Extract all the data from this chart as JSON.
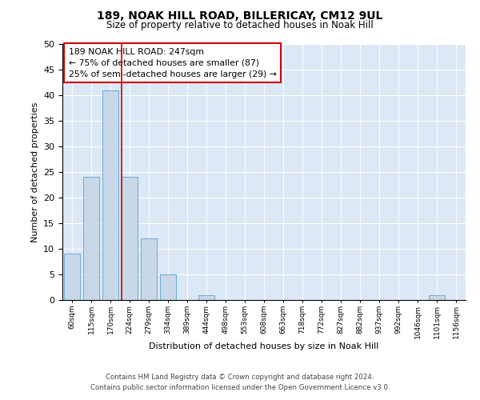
{
  "title": "189, NOAK HILL ROAD, BILLERICAY, CM12 9UL",
  "subtitle": "Size of property relative to detached houses in Noak Hill",
  "xlabel": "Distribution of detached houses by size in Noak Hill",
  "ylabel": "Number of detached properties",
  "bar_color": "#c8d8e8",
  "bar_edge_color": "#6aaad4",
  "background_color": "#dce8f5",
  "categories": [
    "60sqm",
    "115sqm",
    "170sqm",
    "224sqm",
    "279sqm",
    "334sqm",
    "389sqm",
    "444sqm",
    "498sqm",
    "553sqm",
    "608sqm",
    "663sqm",
    "718sqm",
    "772sqm",
    "827sqm",
    "882sqm",
    "937sqm",
    "992sqm",
    "1046sqm",
    "1101sqm",
    "1156sqm"
  ],
  "values": [
    9,
    24,
    41,
    24,
    12,
    5,
    0,
    1,
    0,
    0,
    0,
    0,
    0,
    0,
    0,
    0,
    0,
    0,
    0,
    1,
    0
  ],
  "ylim": [
    0,
    50
  ],
  "yticks": [
    0,
    5,
    10,
    15,
    20,
    25,
    30,
    35,
    40,
    45,
    50
  ],
  "property_line_color": "#cc0000",
  "property_line_x": 2.6,
  "annotation_box_text": "189 NOAK HILL ROAD: 247sqm\n← 75% of detached houses are smaller (87)\n25% of semi-detached houses are larger (29) →",
  "annotation_box_color": "#cc0000",
  "footer_line1": "Contains HM Land Registry data © Crown copyright and database right 2024.",
  "footer_line2": "Contains public sector information licensed under the Open Government Licence v3.0."
}
